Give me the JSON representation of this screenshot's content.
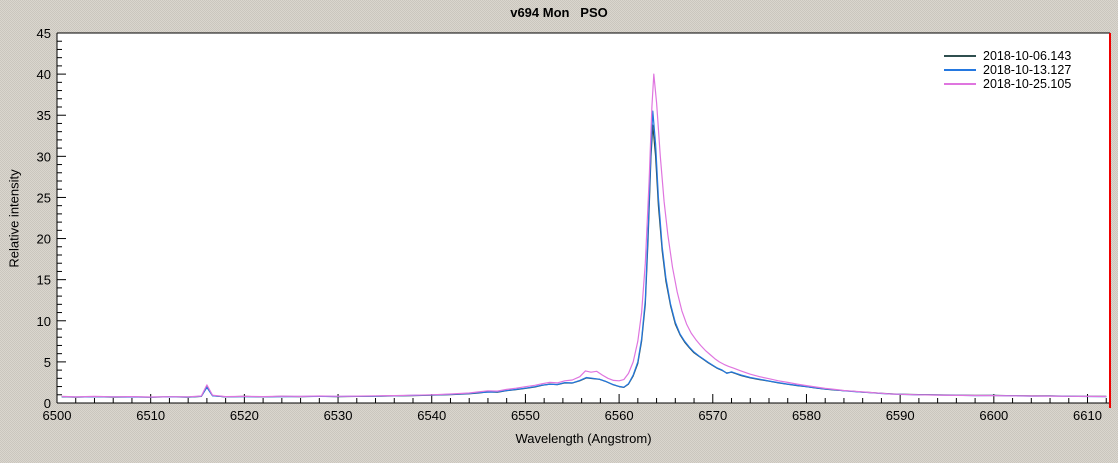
{
  "chart_data": {
    "type": "line",
    "title": "v694 Mon   PSO",
    "xlabel": "Wavelength (Angstrom)",
    "ylabel": "Relative intensity",
    "xlim": [
      6500,
      6612.4
    ],
    "ylim": [
      0,
      45
    ],
    "x_major_tick_step": 10,
    "x_minor_tick_step": 2,
    "y_major_tick_step": 5,
    "y_minor_tick_step": 1,
    "x_tick_labels": [
      "6500",
      "6510",
      "6520",
      "6530",
      "6540",
      "6550",
      "6560",
      "6570",
      "6580",
      "6590",
      "6600",
      "6610"
    ],
    "y_tick_labels": [
      "0",
      "5",
      "10",
      "15",
      "20",
      "25",
      "30",
      "35",
      "40",
      "45"
    ],
    "grid": false,
    "legend_position": "top-right-inside",
    "plot_bg_color": "#ffffff",
    "axis_color": "#000000",
    "right_border_color": "#ee0000",
    "series": [
      {
        "name": "2018-10-06.143",
        "color": "#2F4F4F",
        "points": [
          [
            6500.5,
            0.75
          ],
          [
            6502,
            0.7
          ],
          [
            6504,
            0.78
          ],
          [
            6506,
            0.72
          ],
          [
            6508,
            0.76
          ],
          [
            6510,
            0.7
          ],
          [
            6512,
            0.75
          ],
          [
            6514,
            0.72
          ],
          [
            6515.4,
            0.8
          ],
          [
            6516,
            1.95
          ],
          [
            6516.6,
            0.9
          ],
          [
            6518,
            0.74
          ],
          [
            6520,
            0.8
          ],
          [
            6522,
            0.74
          ],
          [
            6524,
            0.8
          ],
          [
            6526,
            0.77
          ],
          [
            6528,
            0.82
          ],
          [
            6530,
            0.77
          ],
          [
            6532,
            0.8
          ],
          [
            6534,
            0.83
          ],
          [
            6536,
            0.86
          ],
          [
            6538,
            0.9
          ],
          [
            6540,
            0.95
          ],
          [
            6542,
            1.02
          ],
          [
            6544,
            1.12
          ],
          [
            6545,
            1.22
          ],
          [
            6546,
            1.35
          ],
          [
            6547,
            1.3
          ],
          [
            6548,
            1.5
          ],
          [
            6549,
            1.62
          ],
          [
            6550,
            1.78
          ],
          [
            6551,
            1.95
          ],
          [
            6551.8,
            2.15
          ],
          [
            6552.6,
            2.3
          ],
          [
            6553.4,
            2.22
          ],
          [
            6554.2,
            2.45
          ],
          [
            6555,
            2.42
          ],
          [
            6555.8,
            2.7
          ],
          [
            6556.5,
            3.05
          ],
          [
            6557.2,
            2.95
          ],
          [
            6557.9,
            2.88
          ],
          [
            6558.6,
            2.6
          ],
          [
            6559.3,
            2.25
          ],
          [
            6560,
            2.0
          ],
          [
            6560.5,
            1.9
          ],
          [
            6561,
            2.3
          ],
          [
            6561.5,
            3.3
          ],
          [
            6562,
            4.8
          ],
          [
            6562.4,
            7.5
          ],
          [
            6562.8,
            12.0
          ],
          [
            6563.1,
            20.0
          ],
          [
            6563.4,
            30.0
          ],
          [
            6563.6,
            33.8
          ],
          [
            6563.9,
            30.0
          ],
          [
            6564.2,
            24.0
          ],
          [
            6564.6,
            18.5
          ],
          [
            6565,
            14.8
          ],
          [
            6565.5,
            11.8
          ],
          [
            6566,
            9.6
          ],
          [
            6566.5,
            8.3
          ],
          [
            6567,
            7.4
          ],
          [
            6567.5,
            6.7
          ],
          [
            6568,
            6.1
          ],
          [
            6568.5,
            5.7
          ],
          [
            6569,
            5.3
          ],
          [
            6569.5,
            4.9
          ],
          [
            6570,
            4.55
          ],
          [
            6570.5,
            4.2
          ],
          [
            6571,
            3.95
          ],
          [
            6571.5,
            3.65
          ],
          [
            6572,
            3.75
          ],
          [
            6572.5,
            3.55
          ],
          [
            6573,
            3.35
          ],
          [
            6574,
            3.05
          ],
          [
            6575,
            2.85
          ],
          [
            6576,
            2.65
          ],
          [
            6577,
            2.45
          ],
          [
            6578,
            2.28
          ],
          [
            6579,
            2.12
          ],
          [
            6580,
            1.98
          ],
          [
            6581,
            1.82
          ],
          [
            6582,
            1.68
          ],
          [
            6583,
            1.58
          ],
          [
            6584,
            1.5
          ],
          [
            6585,
            1.42
          ],
          [
            6586,
            1.33
          ],
          [
            6587,
            1.27
          ],
          [
            6588,
            1.18
          ],
          [
            6589,
            1.12
          ],
          [
            6590,
            1.07
          ],
          [
            6592,
            1.02
          ],
          [
            6594,
            0.99
          ],
          [
            6596,
            0.96
          ],
          [
            6598,
            0.92
          ],
          [
            6600,
            0.93
          ],
          [
            6602,
            0.89
          ],
          [
            6604,
            0.86
          ],
          [
            6606,
            0.87
          ],
          [
            6608,
            0.83
          ],
          [
            6610,
            0.81
          ],
          [
            6612,
            0.8
          ]
        ]
      },
      {
        "name": "2018-10-13.127",
        "color": "#2478E0",
        "points": [
          [
            6500.5,
            0.78
          ],
          [
            6502,
            0.73
          ],
          [
            6504,
            0.75
          ],
          [
            6506,
            0.74
          ],
          [
            6508,
            0.73
          ],
          [
            6510,
            0.72
          ],
          [
            6512,
            0.76
          ],
          [
            6514,
            0.73
          ],
          [
            6515.4,
            0.82
          ],
          [
            6516,
            1.9
          ],
          [
            6516.6,
            0.88
          ],
          [
            6518,
            0.76
          ],
          [
            6520,
            0.78
          ],
          [
            6522,
            0.76
          ],
          [
            6524,
            0.78
          ],
          [
            6526,
            0.79
          ],
          [
            6528,
            0.8
          ],
          [
            6530,
            0.79
          ],
          [
            6532,
            0.82
          ],
          [
            6534,
            0.84
          ],
          [
            6536,
            0.88
          ],
          [
            6538,
            0.92
          ],
          [
            6540,
            0.97
          ],
          [
            6542,
            1.05
          ],
          [
            6544,
            1.15
          ],
          [
            6545,
            1.25
          ],
          [
            6546,
            1.32
          ],
          [
            6547,
            1.35
          ],
          [
            6548,
            1.52
          ],
          [
            6549,
            1.65
          ],
          [
            6550,
            1.8
          ],
          [
            6551,
            1.98
          ],
          [
            6551.8,
            2.18
          ],
          [
            6552.6,
            2.28
          ],
          [
            6553.4,
            2.25
          ],
          [
            6554.2,
            2.48
          ],
          [
            6555,
            2.45
          ],
          [
            6555.8,
            2.75
          ],
          [
            6556.5,
            3.1
          ],
          [
            6557.2,
            3.0
          ],
          [
            6557.9,
            2.9
          ],
          [
            6558.6,
            2.62
          ],
          [
            6559.3,
            2.28
          ],
          [
            6560,
            2.02
          ],
          [
            6560.5,
            1.92
          ],
          [
            6561,
            2.35
          ],
          [
            6561.5,
            3.4
          ],
          [
            6562,
            5.0
          ],
          [
            6562.4,
            7.8
          ],
          [
            6562.8,
            12.5
          ],
          [
            6563.1,
            21.0
          ],
          [
            6563.4,
            31.0
          ],
          [
            6563.6,
            35.5
          ],
          [
            6563.9,
            31.5
          ],
          [
            6564.2,
            25.0
          ],
          [
            6564.6,
            19.0
          ],
          [
            6565,
            15.2
          ],
          [
            6565.5,
            12.0
          ],
          [
            6566,
            9.8
          ],
          [
            6566.5,
            8.4
          ],
          [
            6567,
            7.5
          ],
          [
            6567.5,
            6.8
          ],
          [
            6568,
            6.2
          ],
          [
            6568.5,
            5.75
          ],
          [
            6569,
            5.35
          ],
          [
            6569.5,
            4.95
          ],
          [
            6570,
            4.6
          ],
          [
            6570.5,
            4.25
          ],
          [
            6571,
            4.0
          ],
          [
            6571.5,
            3.6
          ],
          [
            6572,
            3.8
          ],
          [
            6572.5,
            3.6
          ],
          [
            6573,
            3.4
          ],
          [
            6574,
            3.1
          ],
          [
            6575,
            2.9
          ],
          [
            6576,
            2.68
          ],
          [
            6577,
            2.48
          ],
          [
            6578,
            2.3
          ],
          [
            6579,
            2.14
          ],
          [
            6580,
            2.0
          ],
          [
            6581,
            1.84
          ],
          [
            6582,
            1.7
          ],
          [
            6583,
            1.6
          ],
          [
            6584,
            1.48
          ],
          [
            6585,
            1.4
          ],
          [
            6586,
            1.31
          ],
          [
            6587,
            1.24
          ],
          [
            6588,
            1.16
          ],
          [
            6589,
            1.1
          ],
          [
            6590,
            1.05
          ],
          [
            6592,
            1.0
          ],
          [
            6594,
            0.97
          ],
          [
            6596,
            0.94
          ],
          [
            6598,
            0.9
          ],
          [
            6600,
            0.91
          ],
          [
            6602,
            0.87
          ],
          [
            6604,
            0.84
          ],
          [
            6606,
            0.85
          ],
          [
            6608,
            0.81
          ],
          [
            6610,
            0.79
          ],
          [
            6612,
            0.78
          ]
        ]
      },
      {
        "name": "2018-10-25.105",
        "color": "#DF75DF",
        "points": [
          [
            6500.5,
            0.8
          ],
          [
            6502,
            0.74
          ],
          [
            6504,
            0.8
          ],
          [
            6506,
            0.75
          ],
          [
            6508,
            0.78
          ],
          [
            6510,
            0.73
          ],
          [
            6512,
            0.77
          ],
          [
            6514,
            0.75
          ],
          [
            6515.4,
            0.85
          ],
          [
            6516,
            2.2
          ],
          [
            6516.6,
            0.95
          ],
          [
            6518,
            0.78
          ],
          [
            6520,
            0.82
          ],
          [
            6522,
            0.78
          ],
          [
            6524,
            0.83
          ],
          [
            6526,
            0.8
          ],
          [
            6528,
            0.85
          ],
          [
            6530,
            0.81
          ],
          [
            6532,
            0.84
          ],
          [
            6534,
            0.87
          ],
          [
            6536,
            0.9
          ],
          [
            6538,
            0.95
          ],
          [
            6540,
            1.0
          ],
          [
            6542,
            1.1
          ],
          [
            6544,
            1.22
          ],
          [
            6545,
            1.35
          ],
          [
            6546,
            1.48
          ],
          [
            6547,
            1.45
          ],
          [
            6548,
            1.65
          ],
          [
            6549,
            1.8
          ],
          [
            6550,
            1.98
          ],
          [
            6551,
            2.15
          ],
          [
            6551.8,
            2.35
          ],
          [
            6552.6,
            2.5
          ],
          [
            6553.4,
            2.45
          ],
          [
            6554.2,
            2.7
          ],
          [
            6555,
            2.8
          ],
          [
            6555.8,
            3.2
          ],
          [
            6556.4,
            3.9
          ],
          [
            6557,
            3.75
          ],
          [
            6557.6,
            3.85
          ],
          [
            6558.2,
            3.4
          ],
          [
            6558.8,
            3.0
          ],
          [
            6559.4,
            2.75
          ],
          [
            6560,
            2.7
          ],
          [
            6560.5,
            2.85
          ],
          [
            6561,
            3.6
          ],
          [
            6561.5,
            5.0
          ],
          [
            6562,
            7.5
          ],
          [
            6562.4,
            11.0
          ],
          [
            6562.8,
            17.0
          ],
          [
            6563.2,
            27.0
          ],
          [
            6563.5,
            36.0
          ],
          [
            6563.7,
            40.0
          ],
          [
            6564,
            36.5
          ],
          [
            6564.4,
            30.0
          ],
          [
            6564.8,
            24.5
          ],
          [
            6565.2,
            20.5
          ],
          [
            6565.7,
            16.5
          ],
          [
            6566.2,
            13.5
          ],
          [
            6566.7,
            11.2
          ],
          [
            6567.2,
            9.6
          ],
          [
            6567.7,
            8.5
          ],
          [
            6568.2,
            7.7
          ],
          [
            6568.7,
            7.0
          ],
          [
            6569.2,
            6.4
          ],
          [
            6569.7,
            5.9
          ],
          [
            6570.2,
            5.4
          ],
          [
            6570.7,
            5.0
          ],
          [
            6571.2,
            4.7
          ],
          [
            6571.7,
            4.45
          ],
          [
            6572.2,
            4.25
          ],
          [
            6573,
            3.9
          ],
          [
            6574,
            3.5
          ],
          [
            6575,
            3.2
          ],
          [
            6576,
            2.95
          ],
          [
            6577,
            2.7
          ],
          [
            6578,
            2.5
          ],
          [
            6579,
            2.3
          ],
          [
            6580,
            2.12
          ],
          [
            6581,
            1.95
          ],
          [
            6582,
            1.78
          ],
          [
            6583,
            1.65
          ],
          [
            6584,
            1.52
          ],
          [
            6585,
            1.44
          ],
          [
            6586,
            1.35
          ],
          [
            6587,
            1.26
          ],
          [
            6588,
            1.18
          ],
          [
            6589,
            1.1
          ],
          [
            6590,
            1.06
          ],
          [
            6592,
            1.0
          ],
          [
            6594,
            0.96
          ],
          [
            6596,
            0.93
          ],
          [
            6598,
            0.91
          ],
          [
            6600,
            0.9
          ],
          [
            6602,
            0.88
          ],
          [
            6604,
            0.85
          ],
          [
            6606,
            0.84
          ],
          [
            6608,
            0.82
          ],
          [
            6610,
            0.8
          ],
          [
            6612,
            0.79
          ]
        ]
      }
    ]
  }
}
